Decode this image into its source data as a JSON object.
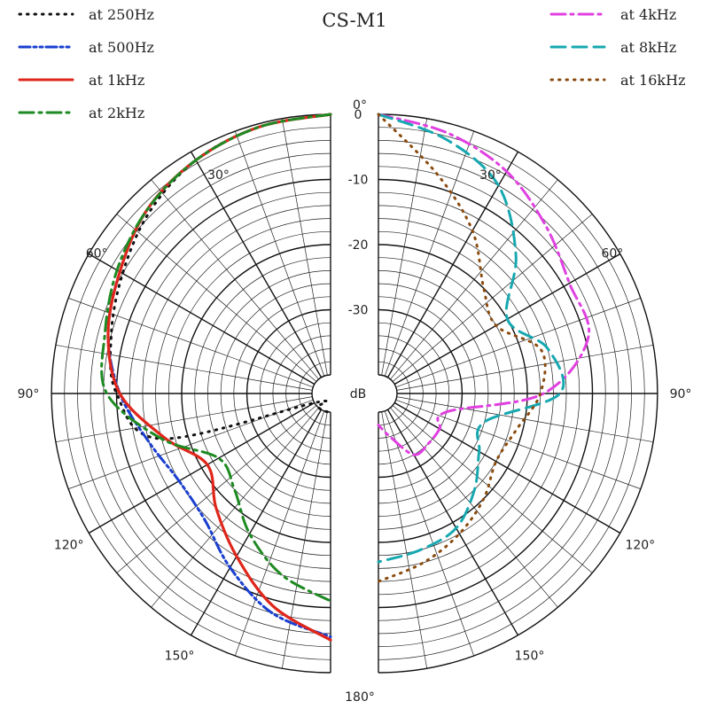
{
  "chart_data": {
    "type": "polar",
    "title": "CS-M1",
    "unit_label": "dB",
    "r_ticks": [
      "0",
      "-10",
      "-20",
      "-30"
    ],
    "r_tick_values": [
      0,
      -10,
      -20,
      -30
    ],
    "r_range": [
      -40,
      0
    ],
    "angle_ticks": [
      {
        "label": "0°",
        "deg": 0
      },
      {
        "label": "30°",
        "deg": 30,
        "side": "left"
      },
      {
        "label": "60°",
        "deg": 60,
        "side": "left"
      },
      {
        "label": "90°",
        "deg": 90,
        "side": "left"
      },
      {
        "label": "120°",
        "deg": 120,
        "side": "left"
      },
      {
        "label": "150°",
        "deg": 150,
        "side": "left"
      },
      {
        "label": "180°",
        "deg": 180
      },
      {
        "label": "30°",
        "deg": 30,
        "side": "right"
      },
      {
        "label": "60°",
        "deg": 60,
        "side": "right"
      },
      {
        "label": "90°",
        "deg": 90,
        "side": "right"
      },
      {
        "label": "120°",
        "deg": 120,
        "side": "right"
      },
      {
        "label": "150°",
        "deg": 150,
        "side": "right"
      }
    ],
    "angles": [
      0,
      15,
      30,
      45,
      60,
      75,
      90,
      105,
      120,
      135,
      150,
      165,
      180
    ],
    "series": [
      {
        "name": "at 250Hz",
        "side": "left",
        "color": "#111111",
        "style": "dotted",
        "values": [
          0,
          -0.5,
          -1.5,
          -3.5,
          -6,
          -8,
          -10,
          -16,
          -40,
          -40,
          -40,
          -40,
          -40
        ]
      },
      {
        "name": "at 500Hz",
        "side": "left",
        "color": "#1a3fd0",
        "style": "dashdotdot",
        "values": [
          0,
          -0.5,
          -1.5,
          -3,
          -5.5,
          -7.5,
          -10.5,
          -14,
          -16,
          -15.5,
          -12,
          -8,
          -5.5
        ]
      },
      {
        "name": "at 1kHz",
        "side": "left",
        "color": "#e0261b",
        "style": "solid",
        "values": [
          0,
          -0.5,
          -1.5,
          -3,
          -5.5,
          -7.5,
          -10.5,
          -16.5,
          -21,
          -18,
          -14,
          -9,
          -5
        ]
      },
      {
        "name": "at 2kHz",
        "side": "left",
        "color": "#1e8a22",
        "style": "dashdot",
        "values": [
          0,
          -0.5,
          -1.5,
          -3,
          -5,
          -7,
          -8.5,
          -16,
          -23,
          -22,
          -18,
          -14,
          -11
        ]
      },
      {
        "name": "at 4kHz",
        "side": "right",
        "color": "#e040e0",
        "style": "dashdot",
        "values": [
          0,
          -1.5,
          -3.5,
          -6.5,
          -9,
          -9.5,
          -17.5,
          -32,
          -32,
          -32,
          -32,
          -36,
          -38
        ]
      },
      {
        "name": "at 8kHz",
        "side": "right",
        "color": "#17a8b0",
        "style": "dashed",
        "values": [
          0,
          -2.5,
          -6,
          -13,
          -20,
          -16,
          -15,
          -26,
          -25,
          -22,
          -19,
          -18,
          -17
        ]
      },
      {
        "name": "at 16kHz",
        "side": "right",
        "color": "#8a4b0f",
        "style": "dotted",
        "values": [
          0,
          -8,
          -14,
          -20,
          -22,
          -17,
          -18,
          -21,
          -22,
          -20,
          -18,
          -16,
          -14
        ]
      }
    ]
  }
}
